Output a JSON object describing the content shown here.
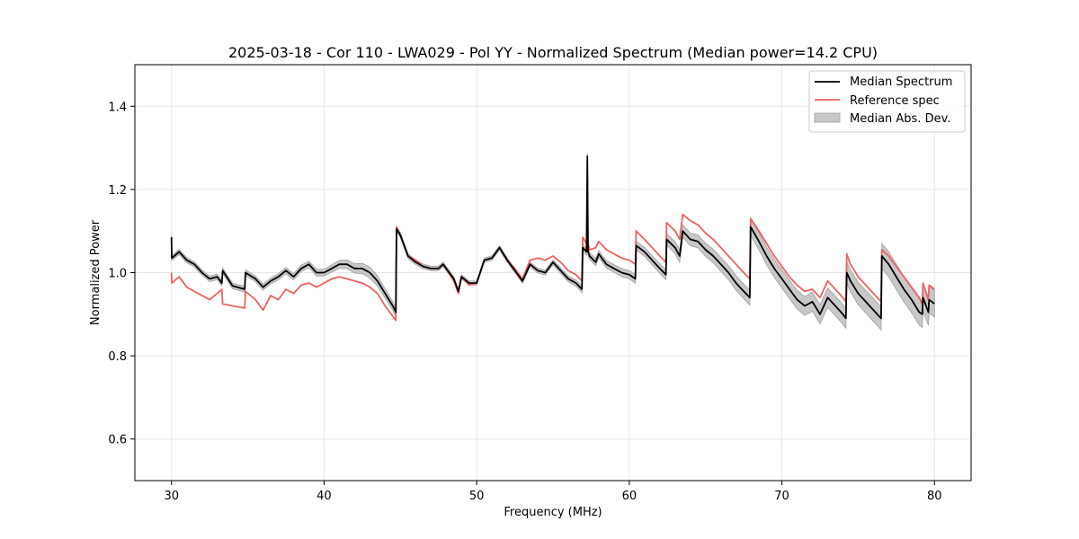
{
  "chart_data": {
    "type": "line",
    "title": "2025-03-18 - Cor 110 - LWA029 - Pol YY - Normalized Spectrum (Median power=14.2 CPU)",
    "xlabel": "Frequency (MHz)",
    "ylabel": "Normalized Power",
    "xlim": [
      27.6,
      82.4
    ],
    "ylim": [
      0.5,
      1.5
    ],
    "xticks": [
      30,
      40,
      50,
      60,
      70,
      80
    ],
    "yticks": [
      0.6,
      0.8,
      1.0,
      1.2,
      1.4
    ],
    "xtick_labels": [
      "30",
      "40",
      "50",
      "60",
      "70",
      "80"
    ],
    "ytick_labels": [
      "0.6",
      "0.8",
      "1.0",
      "1.2",
      "1.4"
    ],
    "grid": true,
    "legend_position": "top-right",
    "legend": [
      "Median Spectrum",
      "Reference spec",
      "Median Abs. Dev."
    ],
    "colors": {
      "median": "#000000",
      "reference": "#f06060",
      "mad_fill": "#c8c8c8",
      "mad_edge": "#a0a0a0"
    },
    "series": [
      {
        "name": "Median Spectrum",
        "x": [
          30.0,
          30.02,
          30.5,
          31.0,
          31.5,
          32.0,
          32.5,
          33.0,
          33.3,
          33.35,
          34.0,
          34.8,
          34.85,
          35.5,
          36.0,
          36.5,
          37.0,
          37.5,
          38.0,
          38.5,
          39.0,
          39.5,
          40.0,
          40.5,
          41.0,
          41.5,
          42.0,
          42.5,
          43.0,
          43.5,
          44.0,
          44.5,
          44.7,
          44.75,
          45.0,
          45.5,
          46.0,
          46.5,
          47.0,
          47.5,
          47.8,
          48.0,
          48.5,
          48.8,
          49.0,
          49.5,
          50.0,
          50.5,
          51.0,
          51.5,
          52.0,
          52.5,
          53.0,
          53.5,
          54.0,
          54.5,
          55.0,
          55.5,
          56.0,
          56.5,
          56.9,
          56.95,
          57.2,
          57.25,
          57.3,
          57.4,
          57.8,
          58.0,
          58.5,
          59.0,
          59.5,
          60.0,
          60.4,
          60.45,
          61.0,
          61.5,
          62.0,
          62.4,
          62.45,
          63.0,
          63.3,
          63.5,
          64.0,
          64.5,
          65.0,
          65.5,
          66.0,
          66.5,
          67.0,
          67.5,
          67.9,
          67.95,
          68.5,
          69.0,
          69.5,
          70.0,
          70.5,
          71.0,
          71.5,
          72.0,
          72.5,
          73.0,
          73.5,
          74.0,
          74.2,
          74.25,
          74.5,
          75.0,
          75.5,
          76.0,
          76.5,
          76.55,
          77.0,
          77.5,
          78.0,
          78.5,
          79.0,
          79.2,
          79.25,
          79.6,
          79.65,
          80.0
        ],
        "y": [
          1.085,
          1.035,
          1.05,
          1.03,
          1.02,
          1.0,
          0.985,
          0.99,
          0.975,
          1.005,
          0.968,
          0.96,
          1.0,
          0.985,
          0.965,
          0.98,
          0.99,
          1.005,
          0.99,
          1.01,
          1.02,
          1.0,
          1.0,
          1.01,
          1.02,
          1.02,
          1.01,
          1.01,
          1.0,
          0.98,
          0.95,
          0.92,
          0.905,
          1.105,
          1.09,
          1.04,
          1.025,
          1.015,
          1.01,
          1.01,
          1.02,
          1.01,
          0.985,
          0.955,
          0.99,
          0.975,
          0.975,
          1.03,
          1.035,
          1.06,
          1.03,
          1.005,
          0.98,
          1.02,
          1.005,
          1.0,
          1.025,
          1.005,
          0.985,
          0.975,
          0.96,
          1.06,
          1.05,
          1.28,
          1.05,
          1.04,
          1.025,
          1.045,
          1.02,
          1.01,
          1.0,
          0.995,
          0.985,
          1.065,
          1.05,
          1.03,
          1.01,
          0.995,
          1.08,
          1.06,
          1.04,
          1.1,
          1.08,
          1.075,
          1.055,
          1.04,
          1.02,
          1.0,
          0.975,
          0.955,
          0.94,
          1.11,
          1.075,
          1.04,
          1.01,
          0.985,
          0.96,
          0.935,
          0.92,
          0.93,
          0.9,
          0.94,
          0.92,
          0.9,
          0.89,
          1.0,
          0.98,
          0.95,
          0.93,
          0.91,
          0.89,
          1.04,
          1.02,
          0.99,
          0.96,
          0.935,
          0.905,
          0.9,
          0.94,
          0.905,
          0.935,
          0.925
        ]
      },
      {
        "name": "Reference spec",
        "x": [
          30.0,
          30.02,
          30.5,
          31.0,
          31.5,
          32.0,
          32.5,
          33.0,
          33.3,
          33.35,
          34.0,
          34.8,
          34.85,
          35.5,
          36.0,
          36.5,
          37.0,
          37.5,
          38.0,
          38.5,
          39.0,
          39.5,
          40.0,
          40.5,
          41.0,
          41.5,
          42.0,
          42.5,
          43.0,
          43.5,
          44.0,
          44.5,
          44.7,
          44.75,
          45.0,
          45.5,
          46.0,
          46.5,
          47.0,
          47.5,
          47.8,
          48.0,
          48.5,
          48.8,
          49.0,
          49.5,
          50.0,
          50.5,
          51.0,
          51.5,
          52.0,
          52.5,
          53.0,
          53.5,
          54.0,
          54.5,
          55.0,
          55.5,
          56.0,
          56.5,
          56.9,
          56.95,
          57.2,
          57.25,
          57.3,
          57.4,
          57.8,
          58.0,
          58.5,
          59.0,
          59.5,
          60.0,
          60.4,
          60.45,
          61.0,
          61.5,
          62.0,
          62.4,
          62.45,
          63.0,
          63.3,
          63.5,
          64.0,
          64.5,
          65.0,
          65.5,
          66.0,
          66.5,
          67.0,
          67.5,
          67.9,
          67.95,
          68.5,
          69.0,
          69.5,
          70.0,
          70.5,
          71.0,
          71.5,
          72.0,
          72.5,
          73.0,
          73.5,
          74.0,
          74.2,
          74.25,
          74.5,
          75.0,
          75.5,
          76.0,
          76.5,
          76.55,
          77.0,
          77.5,
          78.0,
          78.5,
          79.0,
          79.2,
          79.25,
          79.6,
          79.65,
          80.0
        ],
        "y": [
          1.0,
          0.975,
          0.99,
          0.965,
          0.955,
          0.945,
          0.935,
          0.95,
          0.96,
          0.925,
          0.92,
          0.915,
          0.955,
          0.935,
          0.91,
          0.945,
          0.935,
          0.96,
          0.95,
          0.97,
          0.975,
          0.965,
          0.975,
          0.985,
          0.99,
          0.985,
          0.98,
          0.975,
          0.965,
          0.95,
          0.92,
          0.895,
          0.885,
          1.11,
          1.09,
          1.04,
          1.03,
          1.015,
          1.01,
          1.01,
          1.02,
          1.01,
          0.98,
          0.95,
          0.99,
          0.97,
          0.975,
          1.03,
          1.035,
          1.06,
          1.03,
          1.01,
          0.985,
          1.03,
          1.035,
          1.03,
          1.04,
          1.025,
          1.005,
          0.995,
          0.98,
          1.085,
          1.07,
          1.15,
          1.07,
          1.055,
          1.06,
          1.075,
          1.055,
          1.045,
          1.035,
          1.03,
          1.02,
          1.1,
          1.08,
          1.06,
          1.04,
          1.025,
          1.12,
          1.1,
          1.08,
          1.14,
          1.125,
          1.115,
          1.095,
          1.08,
          1.06,
          1.04,
          1.02,
          1.0,
          0.985,
          1.13,
          1.1,
          1.07,
          1.04,
          1.015,
          0.99,
          0.97,
          0.955,
          0.96,
          0.94,
          0.98,
          0.96,
          0.94,
          0.93,
          1.045,
          1.02,
          0.99,
          0.97,
          0.95,
          0.93,
          1.055,
          1.04,
          1.015,
          0.99,
          0.965,
          0.94,
          0.925,
          0.975,
          0.935,
          0.97,
          0.96
        ]
      }
    ],
    "band": {
      "name": "Median Abs. Dev.",
      "x": [
        30,
        35,
        40,
        43,
        44.7,
        44.75,
        50,
        55,
        57,
        60,
        62.4,
        62.45,
        65,
        67.9,
        67.95,
        70,
        74.2,
        74.25,
        76.5,
        76.55,
        80
      ],
      "halfwidth": [
        0.006,
        0.007,
        0.008,
        0.013,
        0.01,
        0.006,
        0.005,
        0.006,
        0.008,
        0.01,
        0.012,
        0.014,
        0.016,
        0.018,
        0.02,
        0.022,
        0.024,
        0.026,
        0.028,
        0.03,
        0.032
      ]
    }
  }
}
